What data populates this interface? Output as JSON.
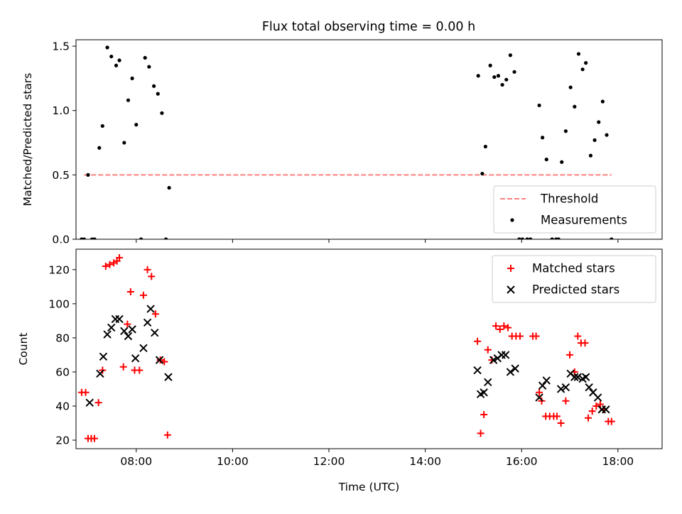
{
  "title": "Flux total observing time = 0.00 h",
  "colors": {
    "threshold": "#ff7f7f",
    "measurement": "#000000",
    "matched": "#ff0000",
    "predicted": "#000000"
  },
  "chart_data": [
    {
      "type": "scatter",
      "title": "Flux total observing time = 0.00 h",
      "ylabel": "Matched/Predicted stars",
      "xlabel": "",
      "x_format": "HH:MM",
      "xlim": [
        "06:45",
        "18:55"
      ],
      "ylim": [
        0,
        1.55
      ],
      "x_ticks": [
        "08:00",
        "10:00",
        "12:00",
        "14:00",
        "16:00",
        "18:00"
      ],
      "y_ticks": [
        0.0,
        0.5,
        1.0,
        1.5
      ],
      "y_tick_labels": [
        "0.0",
        "0.5",
        "1.0",
        "1.5"
      ],
      "legend": [
        "Threshold",
        "Measurements"
      ],
      "legend_position": "lower-right",
      "threshold": {
        "name": "Threshold",
        "value": 0.5,
        "x_start": "06:55",
        "x_end": "17:52",
        "style": "dashed"
      },
      "series": [
        {
          "name": "Measurements",
          "marker": "dot",
          "points": [
            [
              "06:52",
              0.0
            ],
            [
              "06:55",
              0.0
            ],
            [
              "07:00",
              0.5
            ],
            [
              "07:05",
              0.0
            ],
            [
              "07:08",
              0.0
            ],
            [
              "07:14",
              0.71
            ],
            [
              "07:18",
              0.88
            ],
            [
              "07:24",
              1.49
            ],
            [
              "07:29",
              1.42
            ],
            [
              "07:35",
              1.35
            ],
            [
              "07:39",
              1.39
            ],
            [
              "07:45",
              0.75
            ],
            [
              "07:50",
              1.08
            ],
            [
              "07:55",
              1.25
            ],
            [
              "08:00",
              0.89
            ],
            [
              "08:06",
              0.0
            ],
            [
              "08:11",
              1.41
            ],
            [
              "08:16",
              1.34
            ],
            [
              "08:22",
              1.19
            ],
            [
              "08:27",
              1.13
            ],
            [
              "08:32",
              0.98
            ],
            [
              "08:37",
              0.0
            ],
            [
              "08:41",
              0.4
            ],
            [
              "15:06",
              1.27
            ],
            [
              "15:11",
              0.51
            ],
            [
              "15:15",
              0.72
            ],
            [
              "15:21",
              1.35
            ],
            [
              "15:26",
              1.26
            ],
            [
              "15:31",
              1.27
            ],
            [
              "15:36",
              1.2
            ],
            [
              "15:41",
              1.24
            ],
            [
              "15:46",
              1.43
            ],
            [
              "15:51",
              1.3
            ],
            [
              "15:57",
              0.0
            ],
            [
              "16:01",
              0.0
            ],
            [
              "16:07",
              0.0
            ],
            [
              "16:11",
              0.0
            ],
            [
              "16:22",
              1.04
            ],
            [
              "16:26",
              0.79
            ],
            [
              "16:31",
              0.62
            ],
            [
              "16:38",
              0.0
            ],
            [
              "16:43",
              0.0
            ],
            [
              "16:46",
              0.0
            ],
            [
              "16:50",
              0.6
            ],
            [
              "16:55",
              0.84
            ],
            [
              "17:01",
              1.18
            ],
            [
              "17:06",
              1.03
            ],
            [
              "17:11",
              1.44
            ],
            [
              "17:16",
              1.32
            ],
            [
              "17:20",
              1.37
            ],
            [
              "17:26",
              0.65
            ],
            [
              "17:31",
              0.77
            ],
            [
              "17:36",
              0.91
            ],
            [
              "17:41",
              1.07
            ],
            [
              "17:46",
              0.81
            ],
            [
              "17:52",
              0.0
            ]
          ]
        }
      ]
    },
    {
      "type": "scatter",
      "title": "",
      "xlabel": "Time (UTC)",
      "ylabel": "Count",
      "x_format": "HH:MM",
      "xlim": [
        "06:45",
        "18:55"
      ],
      "ylim": [
        15,
        132
      ],
      "x_ticks": [
        "08:00",
        "10:00",
        "12:00",
        "14:00",
        "16:00",
        "18:00"
      ],
      "x_tick_labels": [
        "08:00",
        "10:00",
        "12:00",
        "14:00",
        "16:00",
        "18:00"
      ],
      "y_ticks": [
        20,
        40,
        60,
        80,
        100,
        120
      ],
      "y_tick_labels": [
        "20",
        "40",
        "60",
        "80",
        "100",
        "120"
      ],
      "legend": [
        "Matched stars",
        "Predicted stars"
      ],
      "legend_position": "upper-right",
      "series": [
        {
          "name": "Matched stars",
          "marker": "plus",
          "points": [
            [
              "06:52",
              48
            ],
            [
              "06:57",
              48
            ],
            [
              "07:00",
              21
            ],
            [
              "07:04",
              21
            ],
            [
              "07:08",
              21
            ],
            [
              "07:13",
              42
            ],
            [
              "07:18",
              61
            ],
            [
              "07:22",
              122
            ],
            [
              "07:27",
              123
            ],
            [
              "07:32",
              124
            ],
            [
              "07:36",
              125
            ],
            [
              "07:39",
              127
            ],
            [
              "07:44",
              63
            ],
            [
              "07:49",
              88
            ],
            [
              "07:53",
              107
            ],
            [
              "07:58",
              61
            ],
            [
              "08:04",
              61
            ],
            [
              "08:09",
              105
            ],
            [
              "08:14",
              120
            ],
            [
              "08:19",
              116
            ],
            [
              "08:24",
              94
            ],
            [
              "08:30",
              67
            ],
            [
              "08:35",
              66
            ],
            [
              "08:39",
              23
            ],
            [
              "15:05",
              78
            ],
            [
              "15:09",
              24
            ],
            [
              "15:13",
              35
            ],
            [
              "15:18",
              73
            ],
            [
              "15:23",
              67
            ],
            [
              "15:28",
              87
            ],
            [
              "15:33",
              85
            ],
            [
              "15:38",
              87
            ],
            [
              "15:43",
              86
            ],
            [
              "15:48",
              81
            ],
            [
              "15:53",
              81
            ],
            [
              "15:58",
              81
            ],
            [
              "16:14",
              81
            ],
            [
              "16:18",
              81
            ],
            [
              "16:22",
              48
            ],
            [
              "16:25",
              43
            ],
            [
              "16:30",
              34
            ],
            [
              "16:35",
              34
            ],
            [
              "16:40",
              34
            ],
            [
              "16:44",
              34
            ],
            [
              "16:49",
              30
            ],
            [
              "16:55",
              43
            ],
            [
              "17:00",
              70
            ],
            [
              "17:06",
              60
            ],
            [
              "17:10",
              81
            ],
            [
              "17:14",
              77
            ],
            [
              "17:19",
              77
            ],
            [
              "17:23",
              33
            ],
            [
              "17:28",
              37
            ],
            [
              "17:33",
              40
            ],
            [
              "17:38",
              41
            ],
            [
              "17:42",
              38
            ],
            [
              "17:48",
              31
            ],
            [
              "17:52",
              31
            ]
          ]
        },
        {
          "name": "Predicted stars",
          "marker": "x",
          "points": [
            [
              "07:02",
              42
            ],
            [
              "07:15",
              59
            ],
            [
              "07:19",
              69
            ],
            [
              "07:24",
              82
            ],
            [
              "07:29",
              86
            ],
            [
              "07:34",
              91
            ],
            [
              "07:39",
              91
            ],
            [
              "07:45",
              84
            ],
            [
              "07:50",
              81
            ],
            [
              "07:55",
              85
            ],
            [
              "07:59",
              68
            ],
            [
              "08:09",
              74
            ],
            [
              "08:14",
              89
            ],
            [
              "08:18",
              97
            ],
            [
              "08:23",
              83
            ],
            [
              "08:29",
              67
            ],
            [
              "08:40",
              57
            ],
            [
              "15:05",
              61
            ],
            [
              "15:09",
              47
            ],
            [
              "15:13",
              48
            ],
            [
              "15:18",
              54
            ],
            [
              "15:25",
              67
            ],
            [
              "15:30",
              68
            ],
            [
              "15:35",
              70
            ],
            [
              "15:40",
              70
            ],
            [
              "15:46",
              60
            ],
            [
              "15:52",
              62
            ],
            [
              "16:22",
              45
            ],
            [
              "16:26",
              52
            ],
            [
              "16:31",
              55
            ],
            [
              "16:49",
              50
            ],
            [
              "16:55",
              51
            ],
            [
              "17:01",
              59
            ],
            [
              "17:06",
              57
            ],
            [
              "17:10",
              57
            ],
            [
              "17:16",
              56
            ],
            [
              "17:20",
              57
            ],
            [
              "17:24",
              51
            ],
            [
              "17:29",
              48
            ],
            [
              "17:35",
              45
            ],
            [
              "17:40",
              38
            ],
            [
              "17:45",
              38
            ]
          ]
        }
      ]
    }
  ]
}
